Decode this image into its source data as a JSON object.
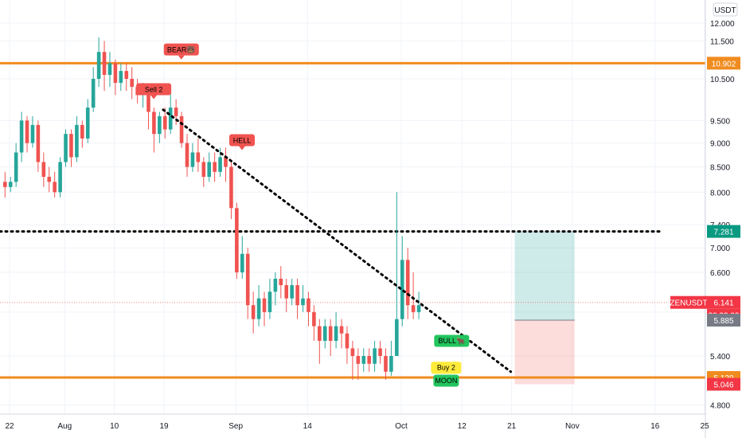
{
  "chart_data": {
    "type": "candlestick",
    "symbol_label": "ZENUSDT",
    "currency_label": "USDT",
    "y_scale": "log",
    "ylim": [
      4.6,
      12.4
    ],
    "grid": true,
    "y_ticks": [
      "4.800",
      "5.400",
      "6.000",
      "6.600",
      "7.000",
      "7.400",
      "8.000",
      "8.500",
      "9.000",
      "9.500",
      "10.500",
      "11.500",
      "12.000"
    ],
    "x_ticks": [
      {
        "label": "22",
        "i": 0
      },
      {
        "label": "Aug",
        "i": 10
      },
      {
        "label": "10",
        "i": 19
      },
      {
        "label": "19",
        "i": 28
      },
      {
        "label": "Sep",
        "i": 41
      },
      {
        "label": "14",
        "i": 54
      },
      {
        "label": "Oct",
        "i": 71
      },
      {
        "label": "12",
        "i": 82
      },
      {
        "label": "21",
        "i": 91
      },
      {
        "label": "Nov",
        "i": 102
      },
      {
        "label": "16",
        "i": 117
      },
      {
        "label": "25",
        "i": 126
      }
    ],
    "candles": [
      [
        8.2,
        8.1,
        8.4,
        7.9
      ],
      [
        8.1,
        8.2,
        8.3,
        8.0
      ],
      [
        8.2,
        8.8,
        9.0,
        8.1
      ],
      [
        8.8,
        9.5,
        9.7,
        8.6
      ],
      [
        9.5,
        9.0,
        9.6,
        8.8
      ],
      [
        9.0,
        9.4,
        9.6,
        8.9
      ],
      [
        9.4,
        8.6,
        9.5,
        8.4
      ],
      [
        8.6,
        8.3,
        8.8,
        8.1
      ],
      [
        8.3,
        8.2,
        8.5,
        8.0
      ],
      [
        8.2,
        8.0,
        8.4,
        7.9
      ],
      [
        8.0,
        8.6,
        8.7,
        7.9
      ],
      [
        8.6,
        9.2,
        9.3,
        8.5
      ],
      [
        9.2,
        8.7,
        9.3,
        8.5
      ],
      [
        8.7,
        9.4,
        9.6,
        8.6
      ],
      [
        9.4,
        9.1,
        9.5,
        8.9
      ],
      [
        9.1,
        9.8,
        10.0,
        9.0
      ],
      [
        9.8,
        10.5,
        10.8,
        9.7
      ],
      [
        10.5,
        11.2,
        11.6,
        10.3
      ],
      [
        11.2,
        10.6,
        11.5,
        10.2
      ],
      [
        10.6,
        10.9,
        11.2,
        10.3
      ],
      [
        10.9,
        10.4,
        11.0,
        10.1
      ],
      [
        10.4,
        10.7,
        10.9,
        10.2
      ],
      [
        10.7,
        10.5,
        10.9,
        10.2
      ],
      [
        10.5,
        10.3,
        10.8,
        10.0
      ],
      [
        10.3,
        10.1,
        10.5,
        9.9
      ],
      [
        10.1,
        10.2,
        10.4,
        9.8
      ],
      [
        10.2,
        9.7,
        10.3,
        9.3
      ],
      [
        9.7,
        9.2,
        9.8,
        8.8
      ],
      [
        9.2,
        9.6,
        9.7,
        9.0
      ],
      [
        9.6,
        9.3,
        9.8,
        9.1
      ],
      [
        9.3,
        9.8,
        10.3,
        9.2
      ],
      [
        9.8,
        9.6,
        10.0,
        9.4
      ],
      [
        9.6,
        9.0,
        9.7,
        8.9
      ],
      [
        9.0,
        8.5,
        9.2,
        8.3
      ],
      [
        8.5,
        8.8,
        9.0,
        8.4
      ],
      [
        8.8,
        8.6,
        9.1,
        8.4
      ],
      [
        8.6,
        8.3,
        8.7,
        8.1
      ],
      [
        8.3,
        8.6,
        8.8,
        8.2
      ],
      [
        8.6,
        8.4,
        8.8,
        8.2
      ],
      [
        8.4,
        8.7,
        8.9,
        8.3
      ],
      [
        8.7,
        8.5,
        8.9,
        8.2
      ],
      [
        8.5,
        7.7,
        8.6,
        7.5
      ],
      [
        7.7,
        6.6,
        7.8,
        6.5
      ],
      [
        6.6,
        6.9,
        7.2,
        6.5
      ],
      [
        6.9,
        6.1,
        7.0,
        5.9
      ],
      [
        6.1,
        5.9,
        6.3,
        5.7
      ],
      [
        5.9,
        6.2,
        6.4,
        5.8
      ],
      [
        6.2,
        6.0,
        6.3,
        5.8
      ],
      [
        6.0,
        6.3,
        6.5,
        5.9
      ],
      [
        6.3,
        6.5,
        6.6,
        6.1
      ],
      [
        6.5,
        6.4,
        6.7,
        6.2
      ],
      [
        6.4,
        6.2,
        6.5,
        6.0
      ],
      [
        6.2,
        6.4,
        6.5,
        6.1
      ],
      [
        6.4,
        6.1,
        6.5,
        5.9
      ],
      [
        6.1,
        6.2,
        6.4,
        6.0
      ],
      [
        6.2,
        6.0,
        6.3,
        5.8
      ],
      [
        6.0,
        5.8,
        6.1,
        5.6
      ],
      [
        5.8,
        5.6,
        5.9,
        5.3
      ],
      [
        5.6,
        5.8,
        5.9,
        5.5
      ],
      [
        5.8,
        5.6,
        5.9,
        5.4
      ],
      [
        5.6,
        5.8,
        6.0,
        5.5
      ],
      [
        5.8,
        5.7,
        5.9,
        5.5
      ],
      [
        5.7,
        5.5,
        5.8,
        5.3
      ],
      [
        5.5,
        5.4,
        5.6,
        5.1
      ],
      [
        5.4,
        5.3,
        5.5,
        5.1
      ],
      [
        5.3,
        5.4,
        5.5,
        5.2
      ],
      [
        5.4,
        5.3,
        5.5,
        5.2
      ],
      [
        5.3,
        5.5,
        5.6,
        5.2
      ],
      [
        5.5,
        5.4,
        5.6,
        5.3
      ],
      [
        5.4,
        5.2,
        5.5,
        5.1
      ],
      [
        5.2,
        5.4,
        5.6,
        5.15
      ],
      [
        5.4,
        5.9,
        8.0,
        5.4
      ],
      [
        5.9,
        6.8,
        7.2,
        5.8
      ],
      [
        6.8,
        6.1,
        7.0,
        5.9
      ],
      [
        6.1,
        6.0,
        6.6,
        5.9
      ],
      [
        6.0,
        6.1,
        6.3,
        5.9
      ]
    ],
    "horizontal_levels": [
      {
        "value": 10.902,
        "label": "10.902",
        "style": "solid",
        "color": "#f08c1f"
      },
      {
        "value": 5.129,
        "label": "5.129",
        "style": "solid",
        "color": "#f08c1f"
      },
      {
        "value": 7.281,
        "label": "7.281",
        "style": "dotted",
        "color": "#000000"
      }
    ],
    "current_price": {
      "label": "ZENUSDT",
      "value": "6.141",
      "countdown": "20:33:02"
    },
    "price_tags": [
      {
        "value": "5.885",
        "color": "#787b86"
      },
      {
        "value": "5.046",
        "color": "#f23645"
      }
    ],
    "trendline": {
      "from": {
        "i": 29,
        "v": 9.75
      },
      "to": {
        "i": 92,
        "v": 5.2
      }
    },
    "position_box": {
      "i_start": 92,
      "i_end": 103,
      "entry": 5.885,
      "target": 7.281,
      "stop": 5.046
    },
    "signals": [
      {
        "text": "BEAR🐻",
        "i": 32,
        "v": 11.0,
        "color": "#f05350",
        "dir": "down"
      },
      {
        "text": "Sell 2",
        "i": 27,
        "v": 10.0,
        "color": "#f05350",
        "dir": "down"
      },
      {
        "text": "HELL",
        "i": 43,
        "v": 8.85,
        "color": "#f05350",
        "dir": "down"
      },
      {
        "text": "BULL🐂",
        "i": 81,
        "v": 5.6,
        "color": "#22c55e",
        "dir": "up"
      },
      {
        "text": "Buy 2",
        "i": 80,
        "v": 5.25,
        "color": "#ffeb3b",
        "dir": "up"
      },
      {
        "text": "MOON",
        "i": 80,
        "v": 5.09,
        "color": "#22c55e",
        "dir": "up"
      }
    ]
  }
}
